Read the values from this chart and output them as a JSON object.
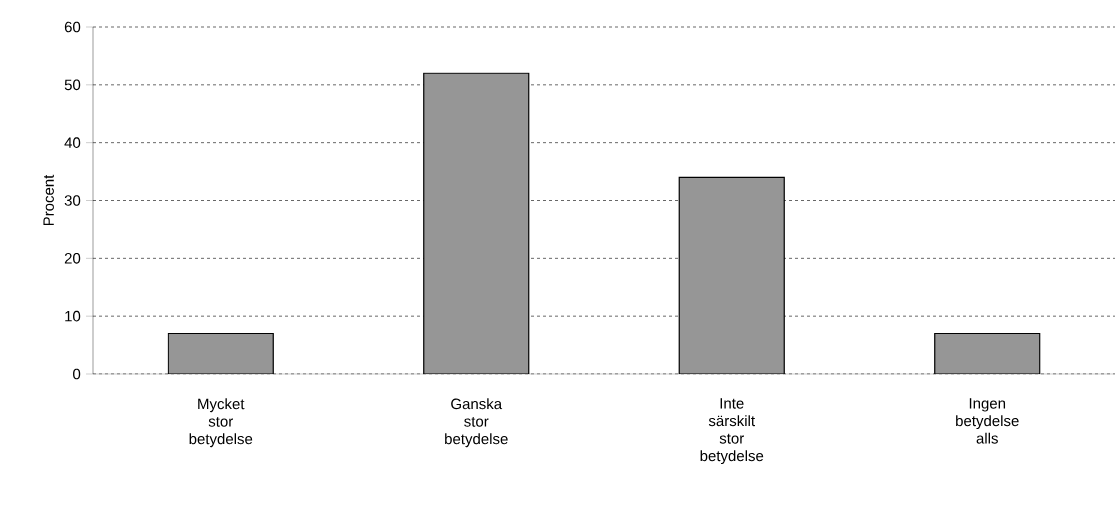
{
  "chart_data": {
    "type": "bar",
    "ylabel": "Procent",
    "categories": [
      "Mycket stor betydelse",
      "Ganska stor betydelse",
      "Inte särskilt stor betydelse",
      "Ingen betydelse alls"
    ],
    "values": [
      7,
      52,
      34,
      7
    ],
    "color": "#969696",
    "ylim": [
      0,
      60
    ],
    "yticks": [
      0,
      10,
      20,
      30,
      40,
      50,
      60
    ],
    "grid": "y"
  }
}
